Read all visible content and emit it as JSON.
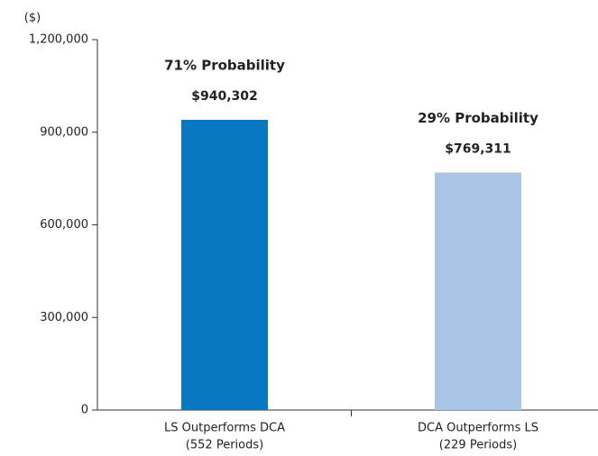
{
  "chart_data": {
    "type": "bar",
    "y_axis_label": "($)",
    "categories": [
      [
        "LS Outperforms DCA",
        "(552 Periods)"
      ],
      [
        "DCA Outperforms LS",
        "(229 Periods)"
      ]
    ],
    "values": [
      940302,
      769311
    ],
    "value_labels": [
      "$940,302",
      "$769,311"
    ],
    "annotations": [
      "71% Probability",
      "29% Probability"
    ],
    "colors": [
      "#0a77c2",
      "#a9c4e4"
    ],
    "ylim": [
      0,
      1200000
    ],
    "yticks": [
      0,
      {
        "value": 300000,
        "label": "300,000"
      },
      {
        "value": 600000,
        "label": "600,000"
      },
      {
        "value": 900000,
        "label": "900,000"
      },
      {
        "value": 1200000,
        "label": "1,200,000"
      }
    ]
  }
}
